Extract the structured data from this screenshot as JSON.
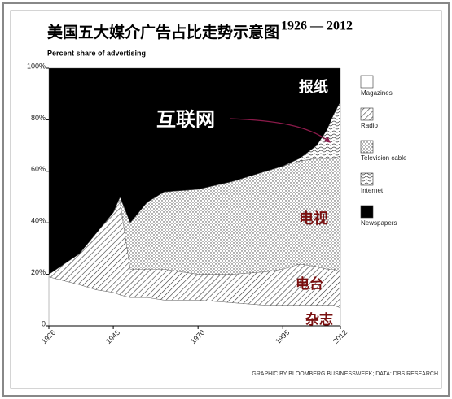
{
  "chart_data": {
    "type": "stacked-area",
    "title": "美国五大媒介广告占比走势示意图",
    "date_range": "1926 — 2012",
    "subtitle": "Percent share of advertising",
    "source": "GRAPHIC BY BLOOMBERG BUSINESSWEEK; DATA: DBS RESEARCH",
    "x": [
      1926,
      1935,
      1940,
      1945,
      1947,
      1950,
      1955,
      1960,
      1970,
      1980,
      1990,
      1995,
      2000,
      2005,
      2008,
      2010,
      2012
    ],
    "series": [
      {
        "name": "Magazines",
        "color": "#ffffff",
        "pattern": "none",
        "values": [
          19,
          16,
          14,
          13,
          12,
          11,
          11,
          10,
          10,
          9,
          8,
          8,
          8,
          8,
          8,
          8,
          7
        ]
      },
      {
        "name": "Radio",
        "color": "#ffffff",
        "pattern": "diagonal",
        "values": [
          1,
          12,
          22,
          31,
          36,
          11,
          11,
          12,
          10,
          11,
          13,
          14,
          16,
          15,
          14,
          14,
          14
        ]
      },
      {
        "name": "Television cable",
        "color": "#ffffff",
        "pattern": "dots",
        "values": [
          0,
          0,
          0,
          0,
          2,
          18,
          26,
          30,
          33,
          36,
          39,
          40,
          40,
          42,
          43,
          43,
          45
        ]
      },
      {
        "name": "Internet",
        "color": "#ffffff",
        "pattern": "waves",
        "values": [
          0,
          0,
          0,
          0,
          0,
          0,
          0,
          0,
          0,
          0,
          0,
          0,
          1,
          5,
          11,
          17,
          21
        ]
      },
      {
        "name": "Newspapers",
        "color": "#000000",
        "pattern": "none",
        "values": [
          80,
          72,
          64,
          56,
          50,
          60,
          52,
          48,
          47,
          44,
          40,
          38,
          35,
          30,
          24,
          18,
          13
        ]
      }
    ],
    "annotations": [
      "报纸",
      "互联网",
      "电视",
      "电台",
      "杂志"
    ],
    "xlim": [
      1926,
      2012
    ],
    "xticks": [
      1926,
      1945,
      1970,
      1995,
      2012
    ],
    "ylim": [
      0,
      100
    ],
    "yticks": [
      0,
      {
        "value": 20,
        "label": "20%"
      },
      {
        "value": 40,
        "label": "40%"
      },
      {
        "value": 60,
        "label": "60%"
      },
      {
        "value": 80,
        "label": "80%"
      },
      {
        "value": 100,
        "label": "100%"
      }
    ]
  }
}
